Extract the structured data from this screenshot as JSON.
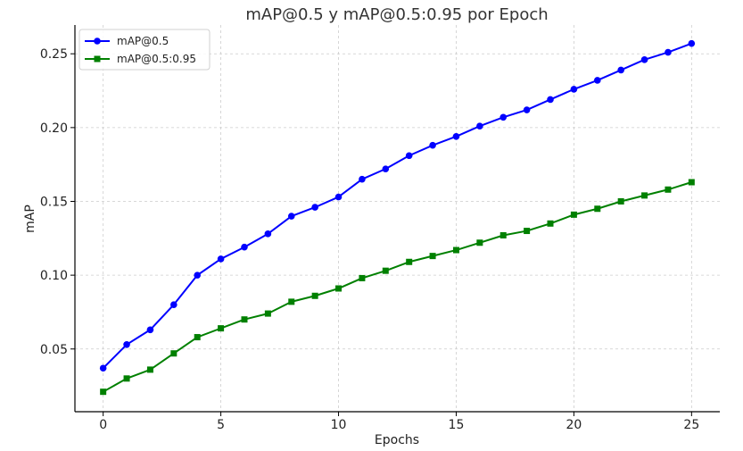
{
  "chart_data": {
    "type": "line",
    "title": "mAP@0.5 y mAP@0.5:0.95 por Epoch",
    "xlabel": "Epochs",
    "ylabel": "mAP",
    "xlim": [
      -1.2,
      26.2
    ],
    "ylim": [
      0.0075,
      0.2695
    ],
    "xticks": [
      0,
      5,
      10,
      15,
      20,
      25
    ],
    "yticks": [
      0.05,
      0.1,
      0.15,
      0.2,
      0.25
    ],
    "xtick_labels": [
      "0",
      "5",
      "10",
      "15",
      "20",
      "25"
    ],
    "ytick_labels": [
      "0.05",
      "0.10",
      "0.15",
      "0.20",
      "0.25"
    ],
    "grid": true,
    "legend_position": "top-left",
    "x": [
      0,
      1,
      2,
      3,
      4,
      5,
      6,
      7,
      8,
      9,
      10,
      11,
      12,
      13,
      14,
      15,
      16,
      17,
      18,
      19,
      20,
      21,
      22,
      23,
      24,
      25
    ],
    "series": [
      {
        "name": "mAP@0.5",
        "color": "#0000ff",
        "marker": "circle",
        "values": [
          0.037,
          0.053,
          0.063,
          0.08,
          0.1,
          0.111,
          0.119,
          0.128,
          0.14,
          0.146,
          0.153,
          0.165,
          0.172,
          0.181,
          0.188,
          0.194,
          0.201,
          0.207,
          0.212,
          0.219,
          0.226,
          0.232,
          0.239,
          0.246,
          0.251,
          0.257
        ]
      },
      {
        "name": "mAP@0.5:0.95",
        "color": "#008000",
        "marker": "square",
        "values": [
          0.021,
          0.03,
          0.036,
          0.047,
          0.058,
          0.064,
          0.07,
          0.074,
          0.082,
          0.086,
          0.091,
          0.098,
          0.103,
          0.109,
          0.113,
          0.117,
          0.122,
          0.127,
          0.13,
          0.135,
          0.141,
          0.145,
          0.15,
          0.154,
          0.158,
          0.163
        ]
      }
    ]
  }
}
